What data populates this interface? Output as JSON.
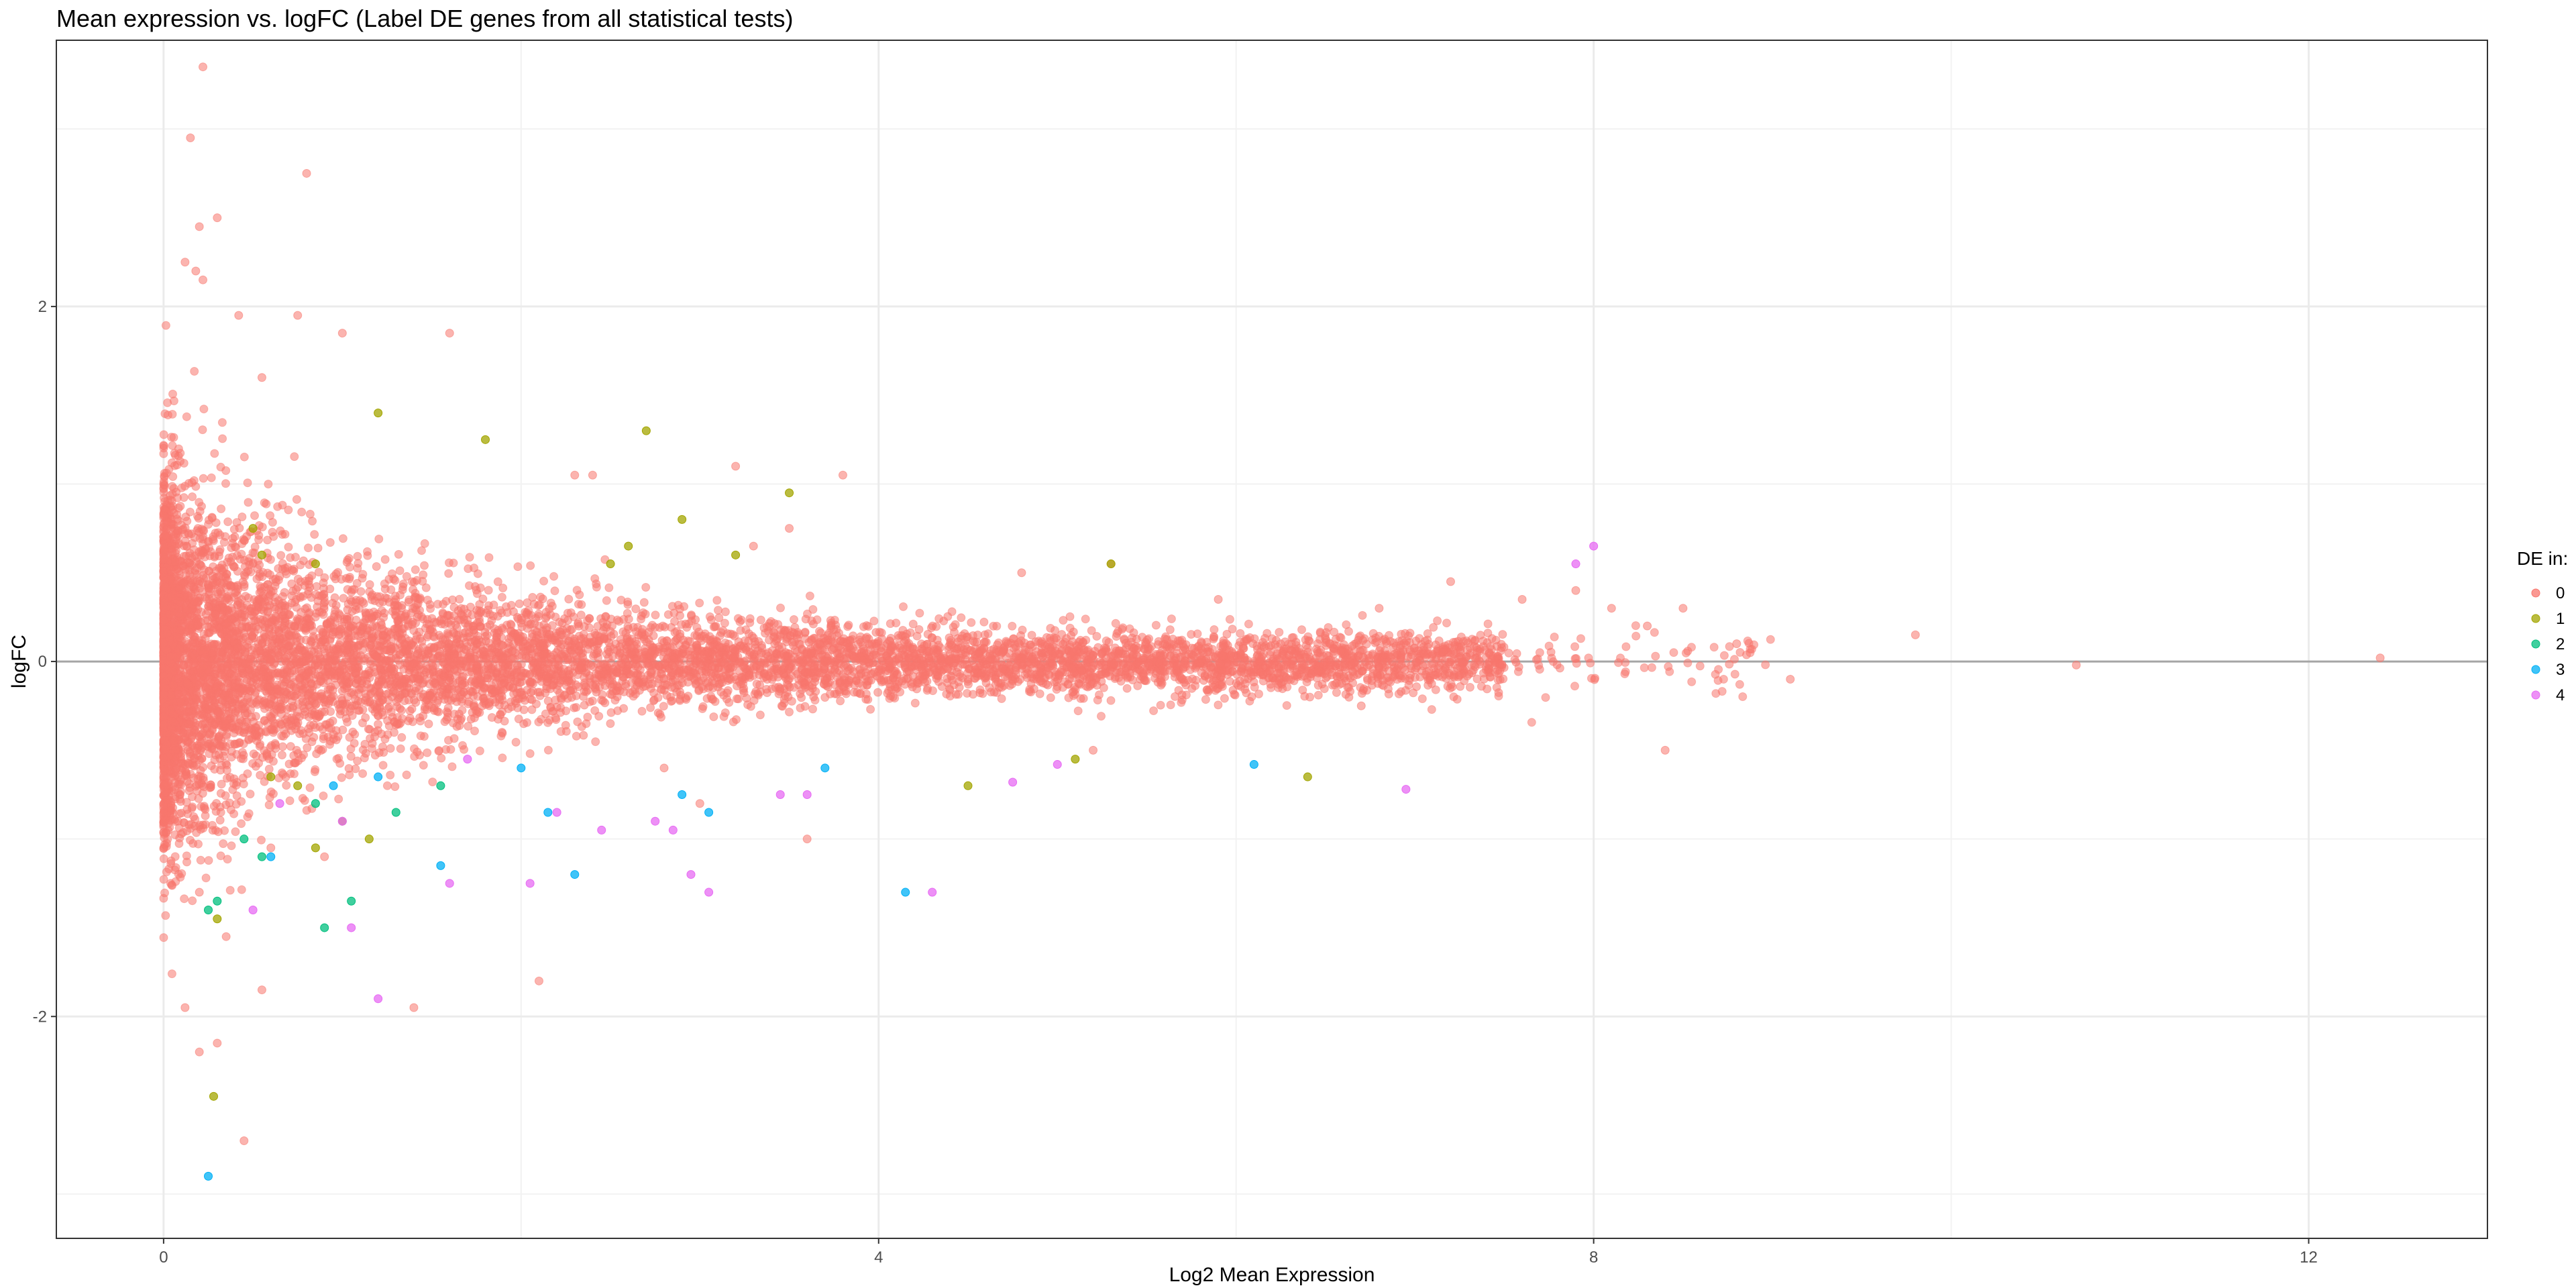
{
  "chart_data": {
    "type": "scatter",
    "title": "Mean expression vs. logFC (Label DE genes from all statistical tests)",
    "xlabel": "Log2 Mean Expression",
    "ylabel": "logFC",
    "xlim": [
      -0.6,
      13.0
    ],
    "ylim": [
      -3.25,
      3.5
    ],
    "x_ticks": [
      0,
      4,
      8,
      12
    ],
    "y_ticks": [
      -2,
      0,
      2
    ],
    "x_tick_labels": [
      "0",
      "4",
      "8",
      "12"
    ],
    "y_tick_labels": [
      "-2",
      "0",
      "2"
    ],
    "grid": true,
    "reference_line_y": 0,
    "legend": {
      "title": "DE in:",
      "position": "right",
      "entries": [
        "0",
        "1",
        "2",
        "3",
        "4"
      ]
    },
    "colors": {
      "0": "#F8766D",
      "1": "#A3A500",
      "2": "#00BF7D",
      "3": "#00B0F6",
      "4": "#E76BF3"
    },
    "point_opacity": 0.55,
    "series": [
      {
        "name": "0",
        "approx_point_count": 9000,
        "x": [
          0.22,
          0.15,
          0.8,
          0.3,
          0.2,
          0.12,
          0.18,
          0.22,
          0.75,
          1.0,
          1.6,
          0.55,
          0.42,
          2.3,
          2.4,
          3.2,
          3.8,
          3.5,
          3.3,
          4.8,
          5.3,
          5.9,
          6.8,
          7.2,
          7.6,
          7.9,
          8.1,
          8.3,
          8.5,
          8.8,
          9.1,
          9.8,
          10.7,
          12.4,
          6.7,
          5.2,
          3.6,
          3.0,
          2.8,
          8.4,
          0.6,
          0.9,
          0.2,
          0.35,
          0.55,
          0.3,
          0.12,
          0.2,
          1.4,
          2.1,
          0.45
        ],
        "y": [
          3.35,
          2.95,
          2.75,
          2.5,
          2.45,
          2.25,
          2.2,
          2.15,
          1.95,
          1.85,
          1.85,
          1.6,
          1.95,
          1.05,
          1.05,
          1.1,
          1.05,
          0.75,
          0.65,
          0.5,
          0.55,
          0.35,
          0.3,
          0.45,
          0.35,
          0.4,
          0.3,
          0.2,
          0.3,
          0.1,
          -0.1,
          0.15,
          -0.02,
          0.02,
          -0.25,
          -0.5,
          -1.0,
          -0.8,
          -0.6,
          -0.5,
          -1.05,
          -1.1,
          -1.3,
          -1.55,
          -1.85,
          -2.15,
          -1.95,
          -2.2,
          -1.95,
          -1.8,
          -2.7
        ]
      },
      {
        "name": "1",
        "x": [
          0.28,
          0.5,
          0.55,
          0.85,
          1.2,
          1.8,
          2.7,
          2.9,
          3.5,
          3.2,
          2.5,
          5.3,
          5.1,
          4.5,
          6.4,
          0.3,
          0.85,
          1.0,
          0.75,
          0.6,
          1.15,
          2.6
        ],
        "y": [
          -2.45,
          0.75,
          0.6,
          0.55,
          1.4,
          1.25,
          1.3,
          0.8,
          0.95,
          0.6,
          0.55,
          0.55,
          -0.55,
          -0.7,
          -0.65,
          -1.45,
          -1.05,
          -0.9,
          -0.7,
          -0.65,
          -1.0,
          0.65
        ]
      },
      {
        "name": "2",
        "x": [
          0.3,
          0.55,
          0.9,
          1.05,
          1.3,
          1.55,
          0.25,
          0.85,
          0.45
        ],
        "y": [
          -1.35,
          -1.1,
          -1.5,
          -1.35,
          -0.85,
          -0.7,
          -1.4,
          -0.8,
          -1.0
        ]
      },
      {
        "name": "3",
        "x": [
          0.25,
          0.6,
          1.55,
          2.0,
          2.15,
          2.3,
          2.9,
          3.05,
          3.7,
          4.15,
          6.1,
          1.2,
          0.95
        ],
        "y": [
          -2.9,
          -1.1,
          -1.15,
          -0.6,
          -0.85,
          -1.2,
          -0.75,
          -0.85,
          -0.6,
          -1.3,
          -0.58,
          -0.65,
          -0.7
        ]
      },
      {
        "name": "4",
        "x": [
          1.2,
          1.05,
          1.6,
          2.05,
          2.45,
          2.75,
          2.95,
          3.05,
          3.45,
          3.6,
          4.3,
          4.75,
          5.0,
          6.95,
          7.9,
          8.0,
          2.85,
          2.2,
          1.7,
          0.5,
          1.0,
          0.65
        ],
        "y": [
          -1.9,
          -1.5,
          -1.25,
          -1.25,
          -0.95,
          -0.9,
          -1.2,
          -1.3,
          -0.75,
          -0.75,
          -1.3,
          -0.68,
          -0.58,
          -0.72,
          0.55,
          0.65,
          -0.95,
          -0.85,
          -0.55,
          -1.4,
          -0.9,
          -0.8
        ]
      }
    ]
  }
}
